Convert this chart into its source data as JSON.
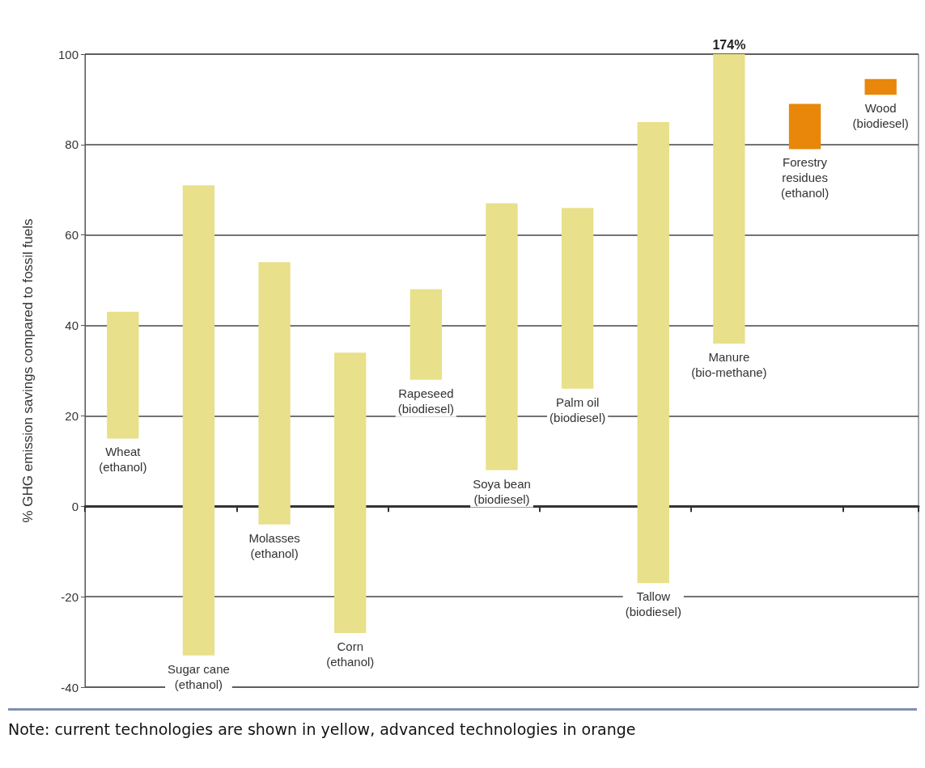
{
  "chart_data": {
    "type": "bar",
    "ylabel": "% GHG emission savings compared to fossil fuels",
    "categories": [
      "Wheat\n(ethanol)",
      "Sugar cane\n(ethanol)",
      "Molasses\n(ethanol)",
      "Corn\n(ethanol)",
      "Rapeseed\n(biodiesel)",
      "Soya bean\n(biodiesel)",
      "Palm oil\n(biodiesel)",
      "Tallow\n(biodiesel)",
      "Manure\n(bio-methane)",
      "Forestry\nresidues\n(ethanol)",
      "Wood\n(biodiesel)"
    ],
    "base": [
      15,
      -33,
      -4,
      -28,
      28,
      8,
      26,
      -17,
      36,
      79,
      91
    ],
    "values": [
      28,
      104,
      58,
      62,
      20,
      59,
      40,
      102,
      64,
      10,
      3.5
    ],
    "colors": [
      "#e8e08a",
      "#e8e08a",
      "#e8e08a",
      "#e8e08a",
      "#e8e08a",
      "#e8e08a",
      "#e8e08a",
      "#e8e08a",
      "#e8e08a",
      "#e8870a",
      "#e8870a"
    ],
    "ylim": [
      -40,
      100
    ],
    "yticks": [
      -40,
      -20,
      0,
      20,
      40,
      60,
      80,
      100
    ],
    "grid": "y",
    "annotations": [
      {
        "text": "174%",
        "x": "Manure\n(bio-methane)",
        "y": 100
      },
      "Note: current technologies are shown in yellow, advanced technologies in orange"
    ]
  }
}
